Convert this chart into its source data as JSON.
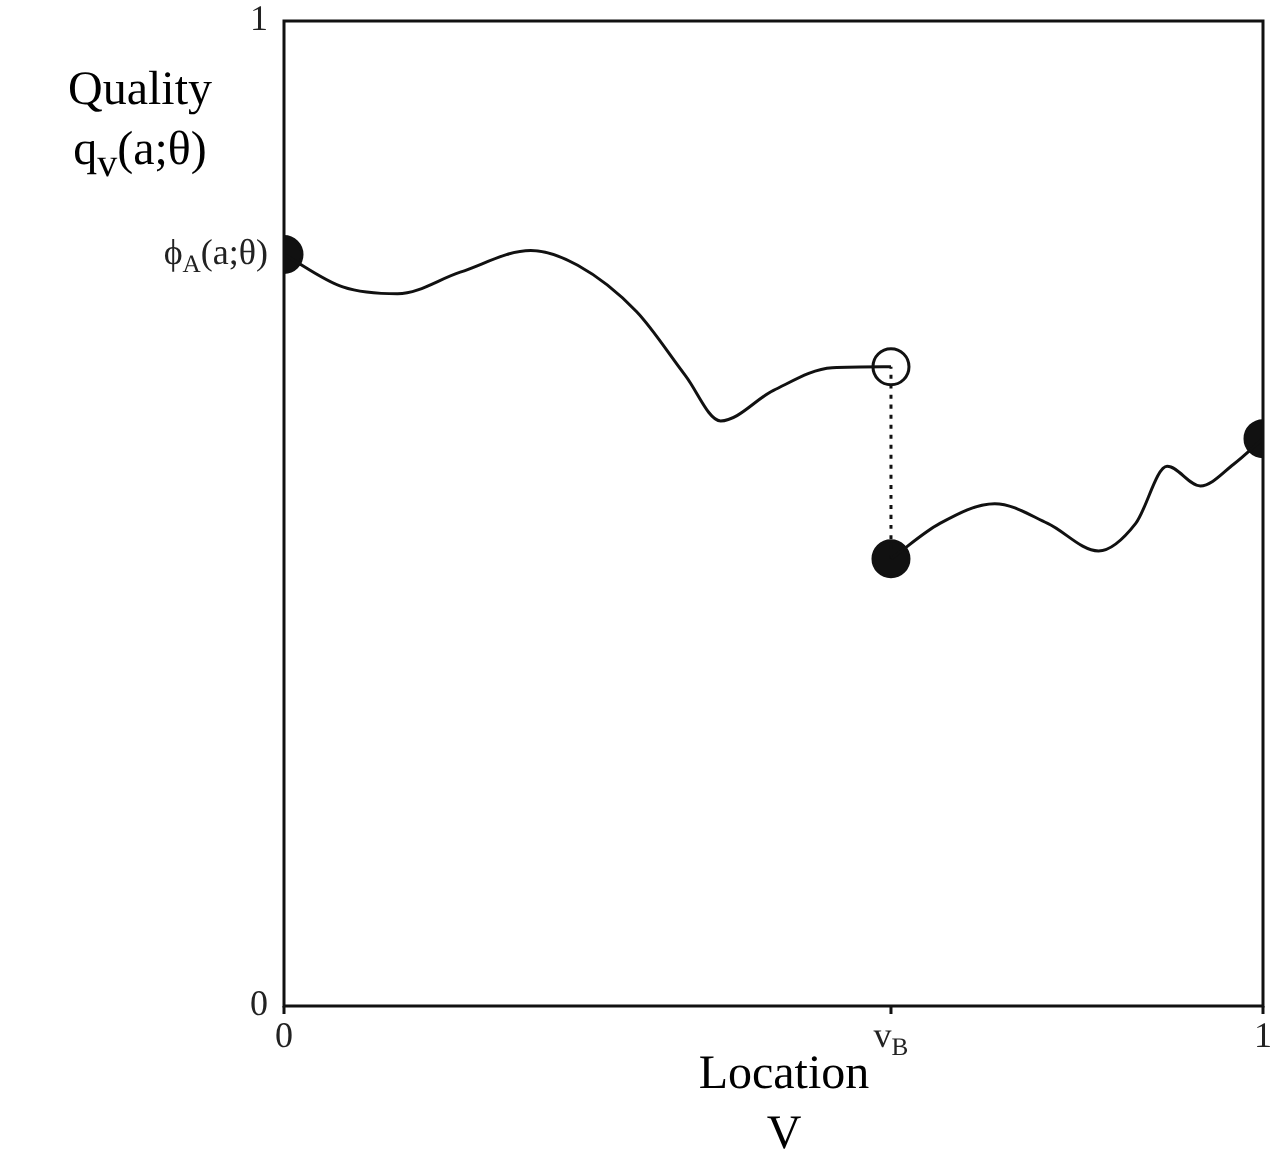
{
  "chart_data": {
    "type": "line",
    "xlabel": "Location V",
    "ylabel": "Quality q$_{v}$(a;θ)",
    "xlim": [
      0,
      1
    ],
    "ylim": [
      0,
      1
    ],
    "xticks": [
      0,
      {
        "value": 0.62,
        "label": "v$_{B}$"
      },
      1
    ],
    "yticks": [
      0,
      {
        "value": 0.763,
        "label": "ϕ$_{A}$(a;θ)"
      },
      1
    ],
    "grid": false,
    "legend": false,
    "series": [
      {
        "type": "line",
        "color": "#111111",
        "marker": "none",
        "x": [
          0,
          0.06,
          0.116,
          0.18,
          0.252,
          0.3,
          0.36,
          0.41,
          0.446,
          0.5,
          0.56,
          0.62
        ],
        "values": [
          0.763,
          0.73,
          0.723,
          0.745,
          0.767,
          0.752,
          0.705,
          0.64,
          0.594,
          0.625,
          0.648,
          0.649
        ]
      },
      {
        "type": "line",
        "color": "#111111",
        "marker": "none",
        "x": [
          0.62,
          0.67,
          0.726,
          0.78,
          0.832,
          0.87,
          0.902,
          0.936,
          0.97,
          1
        ],
        "values": [
          0.454,
          0.49,
          0.51,
          0.49,
          0.462,
          0.49,
          0.548,
          0.528,
          0.55,
          0.576
        ]
      },
      {
        "type": "line",
        "color": "#111111",
        "marker": "none",
        "line_style": "dotted",
        "x": [
          0.62,
          0.62
        ],
        "values": [
          0.454,
          0.649
        ]
      },
      {
        "type": "scatter",
        "color": "#111111",
        "marker": "circle",
        "x": [
          0,
          0.62,
          1
        ],
        "values": [
          0.763,
          0.454,
          0.576
        ]
      },
      {
        "type": "scatter",
        "color": "#ffffff",
        "marker": "circle",
        "x": [
          0.62
        ],
        "values": [
          0.649
        ]
      }
    ]
  }
}
